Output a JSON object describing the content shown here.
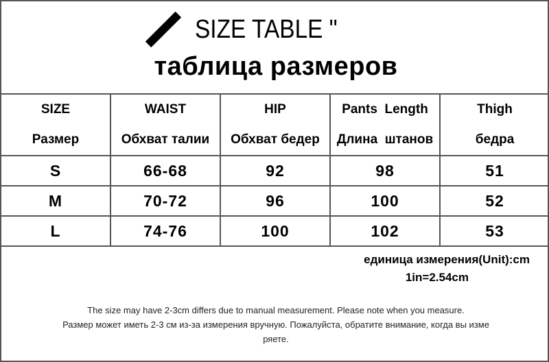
{
  "title": {
    "english": "SIZE TABLE \"",
    "russian": "таблица размеров"
  },
  "table": {
    "headers": [
      {
        "en": "SIZE",
        "ru": "Размер"
      },
      {
        "en": "WAIST",
        "ru": "Обхват талии"
      },
      {
        "en": "HIP",
        "ru": "Обхват бедер"
      },
      {
        "en": "Pants  Length",
        "ru": "Длина  штанов"
      },
      {
        "en": "Thigh",
        "ru": "бедра"
      }
    ],
    "rows": [
      [
        "S",
        "66-68",
        "92",
        "98",
        "51"
      ],
      [
        "M",
        "70-72",
        "96",
        "100",
        "52"
      ],
      [
        "L",
        "74-76",
        "100",
        "102",
        "53"
      ]
    ]
  },
  "unit": {
    "line1": "единица измерения(Unit):cm",
    "line2": "1in=2.54cm"
  },
  "notes": [
    "The size may have 2-3cm differs due to manual measurement. Please note when you measure.",
    "Размер может иметь 2-3 см из-за измерения вручную. Пожалуйста, обратите внимание, когда вы изме",
    "ряете."
  ]
}
